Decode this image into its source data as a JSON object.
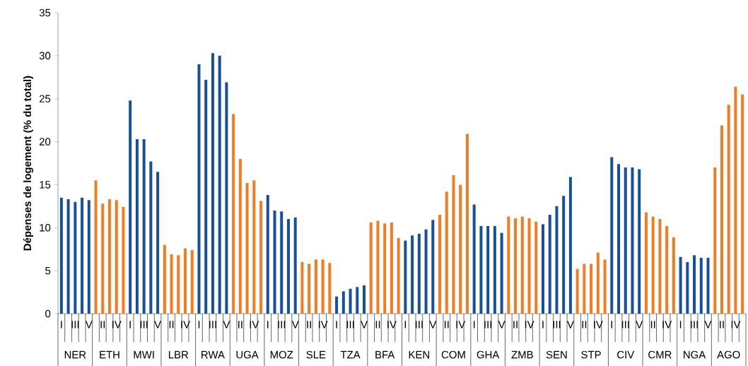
{
  "chart_data": {
    "type": "bar",
    "ylabel": "Dépenses de logement (% du total)",
    "categories": [
      "I",
      null,
      "III",
      null,
      "V",
      null,
      "II",
      null,
      "IV",
      null,
      "I",
      null,
      "III",
      null,
      "V",
      null,
      "II",
      null,
      "IV",
      null,
      "I",
      null,
      "III",
      null,
      "V",
      null,
      "II",
      null,
      "IV",
      null,
      "I",
      null,
      "III",
      null,
      "V",
      null,
      "II",
      null,
      "IV",
      null,
      "I",
      null,
      "III",
      null,
      "V",
      null,
      "II",
      null,
      "IV",
      null,
      "I",
      null,
      "III",
      null,
      "V",
      null,
      "II",
      null,
      "IV",
      null,
      "I",
      null,
      "III",
      null,
      "V",
      null,
      "II",
      null,
      "IV",
      null,
      "I",
      null,
      "III",
      null,
      "V",
      null,
      "II",
      null,
      "IV",
      null,
      "I",
      null,
      "III",
      null,
      "V",
      null,
      "II",
      null,
      "IV",
      null,
      "I",
      null,
      "III",
      null,
      "V",
      null,
      "II",
      null,
      "IV",
      null
    ],
    "values": [
      13.5,
      13.3,
      13.0,
      13.5,
      13.2,
      15.5,
      12.8,
      13.3,
      13.2,
      12.4,
      24.8,
      20.3,
      20.3,
      17.7,
      16.5,
      8.0,
      6.9,
      6.8,
      7.6,
      7.4,
      29.0,
      27.2,
      30.3,
      30.0,
      26.9,
      23.2,
      18.0,
      15.2,
      15.5,
      13.1,
      13.8,
      12.0,
      11.9,
      11.0,
      11.2,
      6.0,
      5.8,
      6.3,
      6.3,
      5.9,
      2.0,
      2.6,
      2.9,
      3.1,
      3.3,
      10.6,
      10.8,
      10.5,
      10.6,
      8.8,
      8.5,
      9.1,
      9.3,
      9.8,
      10.9,
      11.5,
      14.2,
      16.1,
      15.0,
      20.9,
      12.7,
      10.2,
      10.2,
      10.2,
      9.4,
      11.3,
      11.1,
      11.3,
      11.1,
      10.7,
      10.4,
      11.5,
      12.5,
      13.7,
      15.9,
      5.2,
      5.8,
      5.8,
      7.1,
      6.3,
      18.2,
      17.4,
      17.0,
      17.0,
      16.8,
      11.8,
      11.3,
      11.0,
      10.2,
      8.9,
      6.6,
      6.0,
      6.8,
      6.5,
      6.5,
      17.0,
      21.9,
      24.3,
      26.4,
      25.5
    ],
    "colors": [
      "#164f9b",
      "#164f9b",
      "#164f9b",
      "#164f9b",
      "#164f9b",
      "#f47b20",
      "#f47b20",
      "#f47b20",
      "#f47b20",
      "#f47b20",
      "#164f9b",
      "#164f9b",
      "#164f9b",
      "#164f9b",
      "#164f9b",
      "#f47b20",
      "#f47b20",
      "#f47b20",
      "#f47b20",
      "#f47b20",
      "#164f9b",
      "#164f9b",
      "#164f9b",
      "#164f9b",
      "#164f9b",
      "#f47b20",
      "#f47b20",
      "#f47b20",
      "#f47b20",
      "#f47b20",
      "#164f9b",
      "#164f9b",
      "#164f9b",
      "#164f9b",
      "#164f9b",
      "#f47b20",
      "#f47b20",
      "#f47b20",
      "#f47b20",
      "#f47b20",
      "#164f9b",
      "#164f9b",
      "#164f9b",
      "#164f9b",
      "#164f9b",
      "#f47b20",
      "#f47b20",
      "#f47b20",
      "#f47b20",
      "#f47b20",
      "#164f9b",
      "#164f9b",
      "#164f9b",
      "#164f9b",
      "#164f9b",
      "#f47b20",
      "#f47b20",
      "#f47b20",
      "#f47b20",
      "#f47b20",
      "#164f9b",
      "#164f9b",
      "#164f9b",
      "#164f9b",
      "#164f9b",
      "#f47b20",
      "#f47b20",
      "#f47b20",
      "#f47b20",
      "#f47b20",
      "#164f9b",
      "#164f9b",
      "#164f9b",
      "#164f9b",
      "#164f9b",
      "#f47b20",
      "#f47b20",
      "#f47b20",
      "#f47b20",
      "#f47b20",
      "#164f9b",
      "#164f9b",
      "#164f9b",
      "#164f9b",
      "#164f9b",
      "#f47b20",
      "#f47b20",
      "#f47b20",
      "#f47b20",
      "#f47b20",
      "#164f9b",
      "#164f9b",
      "#164f9b",
      "#164f9b",
      "#164f9b",
      "#f47b20",
      "#f47b20",
      "#f47b20",
      "#f47b20",
      "#f47b20"
    ],
    "ylim": [
      0,
      35
    ],
    "yticks": [
      0,
      5,
      10,
      15,
      20,
      25,
      30,
      35
    ],
    "grid": false,
    "annotations": [
      "NER",
      "ETH",
      "MWI",
      "LBR",
      "RWA",
      "UGA",
      "MOZ",
      "SLE",
      "TZA",
      "BFA",
      "KEN",
      "COM",
      "GHA",
      "ZMB",
      "SEN",
      "STP",
      "CIV",
      "CMR",
      "NGA",
      "AGO"
    ]
  }
}
